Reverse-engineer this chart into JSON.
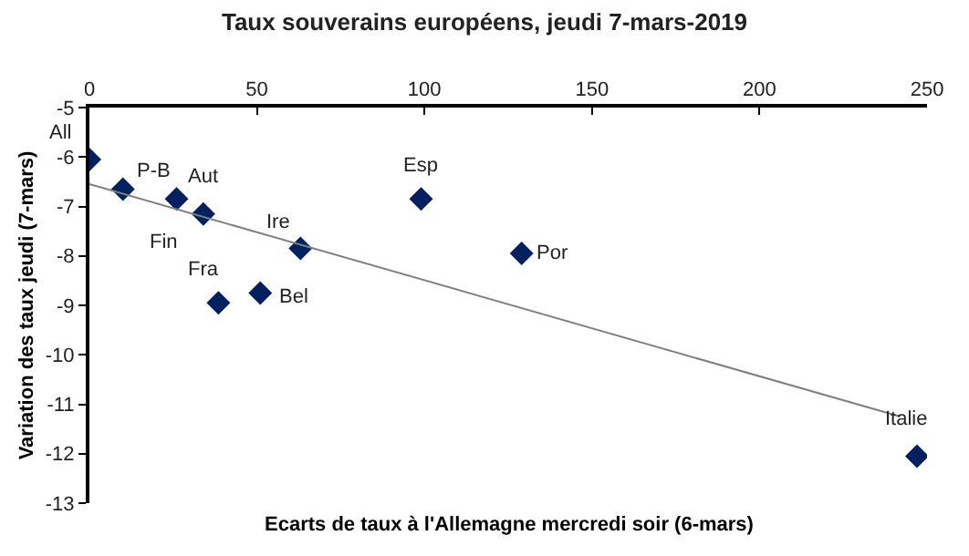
{
  "chart_data": {
    "type": "scatter",
    "title": "Taux souverains européens, jeudi 7-mars-2019",
    "xlabel": "Ecarts de taux à l'Allemagne mercredi soir (6-mars)",
    "ylabel": "Variation des taux jeudi (7-mars)",
    "x": [
      0,
      10,
      26,
      34,
      63,
      38.5,
      51,
      99,
      129,
      247
    ],
    "series": [
      {
        "color": "#002060",
        "values": [
          -6.05,
          -6.65,
          -6.85,
          -7.15,
          -7.85,
          -8.95,
          -8.75,
          -6.85,
          -7.95,
          -12.05
        ],
        "marker": "diamond"
      },
      {
        "type": "line",
        "color": "#7f7f7f",
        "x": [
          0,
          242
        ],
        "values": [
          -6.55,
          -11.25
        ],
        "marker": "none"
      }
    ],
    "annotations": [
      {
        "text": "All",
        "x": 0,
        "y": -6.05
      },
      {
        "text": "P-B",
        "x": 10,
        "y": -6.65
      },
      {
        "text": "Aut",
        "x": 26,
        "y": -6.85
      },
      {
        "text": "Fin",
        "x": 34,
        "y": -7.15
      },
      {
        "text": "Ire",
        "x": 63,
        "y": -7.85
      },
      {
        "text": "Fra",
        "x": 38.5,
        "y": -8.95
      },
      {
        "text": "Bel",
        "x": 51,
        "y": -8.75
      },
      {
        "text": "Esp",
        "x": 99,
        "y": -6.85
      },
      {
        "text": "Por",
        "x": 129,
        "y": -7.95
      },
      {
        "text": "Italie",
        "x": 247,
        "y": -12.05
      }
    ],
    "xlim": [
      0,
      250
    ],
    "xticks": [
      0,
      50,
      100,
      150,
      200,
      250
    ],
    "ylim": [
      -13,
      -5
    ],
    "yticks": [
      -13,
      -12,
      -11,
      -10,
      -9,
      -8,
      -7,
      -6,
      -5
    ]
  }
}
